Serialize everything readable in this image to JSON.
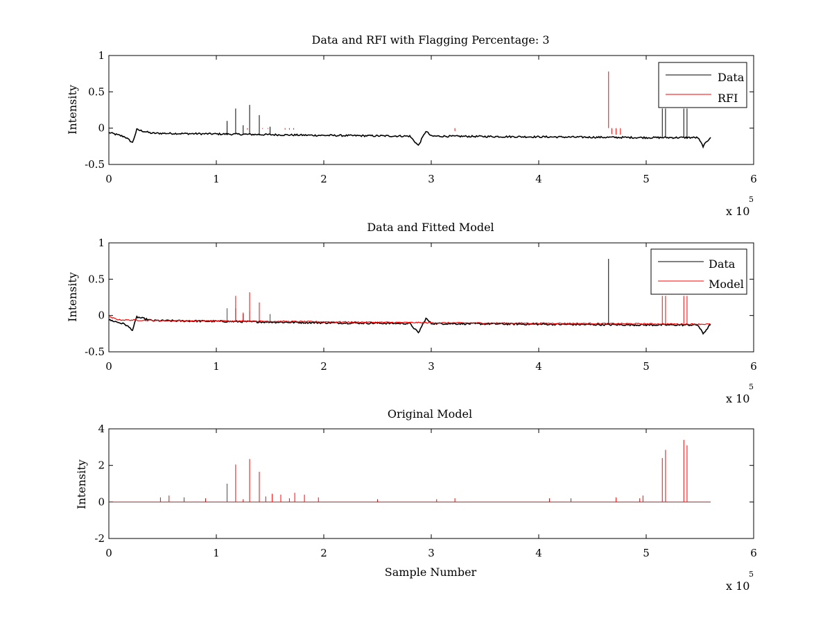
{
  "chart_data": [
    {
      "type": "line",
      "title": "Data and RFI with Flagging Percentage: 3",
      "xlabel": "",
      "ylabel": "Intensity",
      "xlim": [
        0,
        600000
      ],
      "ylim": [
        -0.5,
        1
      ],
      "x_ticks": [
        "0",
        "1",
        "2",
        "3",
        "4",
        "5",
        "6"
      ],
      "y_ticks": [
        "-0.5",
        "0",
        "0.5",
        "1"
      ],
      "x_multiplier": "x 10",
      "x_exponent": "5",
      "grid": false,
      "legend_position": "top-right",
      "series": [
        {
          "name": "Data",
          "color": "#000000",
          "baseline": [
            [
              0,
              -0.06
            ],
            [
              5000,
              -0.08
            ],
            [
              15000,
              -0.12
            ],
            [
              22000,
              -0.2
            ],
            [
              26000,
              -0.02
            ],
            [
              40000,
              -0.07
            ],
            [
              100000,
              -0.08
            ],
            [
              200000,
              -0.1
            ],
            [
              280000,
              -0.11
            ],
            [
              288000,
              -0.24
            ],
            [
              295000,
              -0.04
            ],
            [
              300000,
              -0.11
            ],
            [
              400000,
              -0.12
            ],
            [
              500000,
              -0.13
            ],
            [
              548000,
              -0.13
            ],
            [
              553000,
              -0.25
            ],
            [
              560000,
              -0.12
            ]
          ],
          "spikes": [
            [
              110000,
              0.1
            ],
            [
              118000,
              0.27
            ],
            [
              125000,
              0.04
            ],
            [
              131000,
              0.32
            ],
            [
              140000,
              0.18
            ],
            [
              150000,
              0.02
            ],
            [
              515000,
              0.27
            ],
            [
              518000,
              0.27
            ],
            [
              535000,
              0.27
            ],
            [
              538000,
              0.27
            ]
          ]
        },
        {
          "name": "RFI",
          "color": "#ff0000",
          "spikes": [
            [
              129000,
              -0.02
            ],
            [
              143000,
              -0.01
            ],
            [
              148000,
              -0.01
            ],
            [
              164000,
              -0.02
            ],
            [
              168000,
              -0.02
            ],
            [
              172000,
              -0.02
            ],
            [
              322000,
              -0.04
            ],
            [
              465000,
              0.78
            ],
            [
              468000,
              -0.08
            ],
            [
              472000,
              -0.09
            ],
            [
              476000,
              -0.09
            ]
          ]
        }
      ]
    },
    {
      "type": "line",
      "title": "Data and Fitted Model",
      "xlabel": "",
      "ylabel": "Intensity",
      "xlim": [
        0,
        600000
      ],
      "ylim": [
        -0.5,
        1
      ],
      "x_ticks": [
        "0",
        "1",
        "2",
        "3",
        "4",
        "5",
        "6"
      ],
      "y_ticks": [
        "-0.5",
        "0",
        "0.5",
        "1"
      ],
      "x_multiplier": "x 10",
      "x_exponent": "5",
      "grid": false,
      "legend_position": "top-right",
      "series": [
        {
          "name": "Data",
          "color": "#000000",
          "baseline": [
            [
              0,
              -0.06
            ],
            [
              5000,
              -0.08
            ],
            [
              15000,
              -0.12
            ],
            [
              22000,
              -0.2
            ],
            [
              26000,
              -0.02
            ],
            [
              40000,
              -0.07
            ],
            [
              100000,
              -0.08
            ],
            [
              200000,
              -0.1
            ],
            [
              280000,
              -0.11
            ],
            [
              288000,
              -0.24
            ],
            [
              295000,
              -0.04
            ],
            [
              300000,
              -0.11
            ],
            [
              400000,
              -0.12
            ],
            [
              500000,
              -0.13
            ],
            [
              548000,
              -0.13
            ],
            [
              553000,
              -0.25
            ],
            [
              560000,
              -0.12
            ]
          ],
          "spikes": [
            [
              118000,
              0.1
            ],
            [
              125000,
              0.02
            ],
            [
              131000,
              0.06
            ],
            [
              140000,
              0.02
            ],
            [
              465000,
              0.78
            ]
          ]
        },
        {
          "name": "Model",
          "color": "#ff0000",
          "baseline": [
            [
              0,
              -0.02
            ],
            [
              10000,
              -0.06
            ],
            [
              50000,
              -0.07
            ],
            [
              150000,
              -0.08
            ],
            [
              300000,
              -0.1
            ],
            [
              450000,
              -0.11
            ],
            [
              560000,
              -0.12
            ]
          ],
          "spikes": [
            [
              110000,
              0.1
            ],
            [
              118000,
              0.27
            ],
            [
              125000,
              0.04
            ],
            [
              131000,
              0.32
            ],
            [
              140000,
              0.18
            ],
            [
              150000,
              0.02
            ],
            [
              515000,
              0.27
            ],
            [
              518000,
              0.27
            ],
            [
              535000,
              0.27
            ],
            [
              538000,
              0.27
            ]
          ]
        }
      ]
    },
    {
      "type": "line",
      "title": "Original Model",
      "xlabel": "Sample Number",
      "ylabel": "Intensity",
      "xlim": [
        0,
        600000
      ],
      "ylim": [
        -2,
        4
      ],
      "x_ticks": [
        "0",
        "1",
        "2",
        "3",
        "4",
        "5",
        "6"
      ],
      "y_ticks": [
        "-2",
        "0",
        "2",
        "4"
      ],
      "x_multiplier": "x 10",
      "x_exponent": "5",
      "grid": false,
      "series": [
        {
          "color": "#ff0000",
          "baseline_value": 0,
          "x_end": 560000,
          "spikes": [
            [
              48000,
              0.25
            ],
            [
              56000,
              0.35
            ],
            [
              70000,
              0.25
            ],
            [
              90000,
              0.2
            ],
            [
              110000,
              1.0
            ],
            [
              118000,
              2.05
            ],
            [
              125000,
              0.15
            ],
            [
              131000,
              2.35
            ],
            [
              140000,
              1.65
            ],
            [
              146000,
              0.3
            ],
            [
              152000,
              0.45
            ],
            [
              160000,
              0.4
            ],
            [
              168000,
              0.2
            ],
            [
              173000,
              0.5
            ],
            [
              182000,
              0.4
            ],
            [
              195000,
              0.25
            ],
            [
              250000,
              0.15
            ],
            [
              305000,
              0.15
            ],
            [
              322000,
              0.2
            ],
            [
              410000,
              0.2
            ],
            [
              430000,
              0.2
            ],
            [
              472000,
              0.25
            ],
            [
              494000,
              0.2
            ],
            [
              497000,
              0.35
            ],
            [
              515000,
              2.4
            ],
            [
              518000,
              2.85
            ],
            [
              535000,
              3.4
            ],
            [
              538000,
              3.1
            ]
          ]
        }
      ]
    }
  ]
}
